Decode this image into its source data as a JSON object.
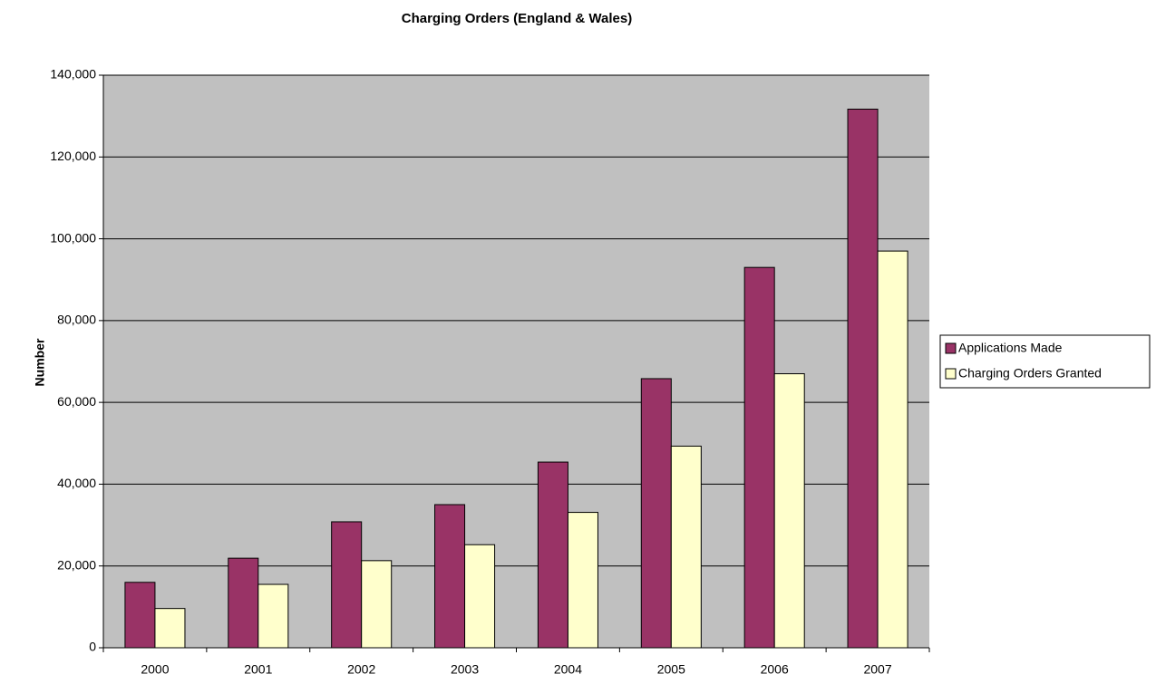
{
  "chart_data": {
    "type": "bar",
    "title": "Charging Orders (England & Wales)",
    "y_label": "Number",
    "categories": [
      "2000",
      "2001",
      "2002",
      "2003",
      "2004",
      "2005",
      "2006",
      "2007"
    ],
    "series": [
      {
        "name": "Applications Made",
        "color": "#993366",
        "values": [
          16000,
          21900,
          30800,
          35000,
          45400,
          65800,
          93000,
          131700
        ]
      },
      {
        "name": "Charging Orders Granted",
        "color": "#FFFFCC",
        "values": [
          9600,
          15500,
          21300,
          25200,
          33100,
          49300,
          67000,
          97000
        ]
      }
    ],
    "ylim": [
      0,
      140000
    ],
    "yticks": [
      0,
      {
        "value": 20000,
        "label": "20,000"
      },
      {
        "value": 40000,
        "label": "40,000"
      },
      {
        "value": 60000,
        "label": "60,000"
      },
      {
        "value": 80000,
        "label": "80,000"
      },
      {
        "value": 100000,
        "label": "100,000"
      },
      {
        "value": 120000,
        "label": "120,000"
      },
      {
        "value": 140000,
        "label": "140,000"
      }
    ],
    "grid": true,
    "legend": "right"
  }
}
